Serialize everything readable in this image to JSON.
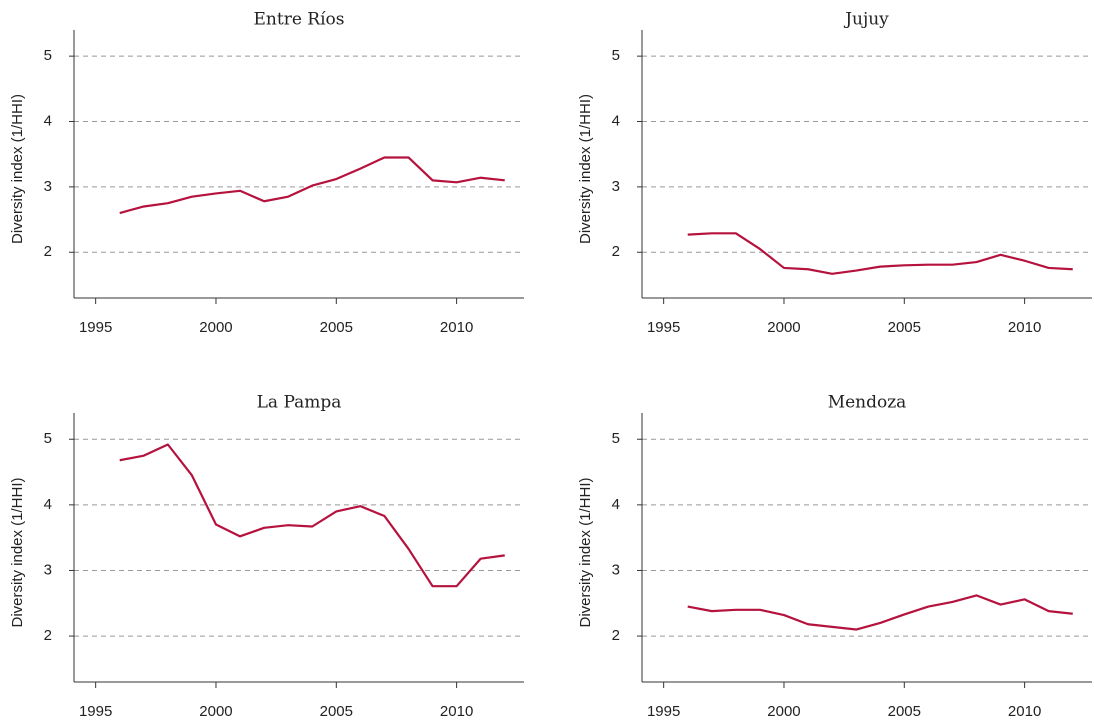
{
  "chart_data": [
    {
      "type": "line",
      "title": "Entre Ríos",
      "ylabel": "Diversity index (1/HHI)",
      "color": "#b5123e",
      "x": [
        1996,
        1997,
        1998,
        1999,
        2000,
        2001,
        2002,
        2003,
        2004,
        2005,
        2006,
        2007,
        2008,
        2009,
        2010,
        2011,
        2012
      ],
      "values": [
        2.6,
        2.7,
        2.75,
        2.85,
        2.9,
        2.94,
        2.78,
        2.85,
        3.02,
        3.12,
        3.28,
        3.45,
        3.45,
        3.1,
        3.07,
        3.14,
        3.1
      ],
      "xlim": [
        1994.1,
        2012.8
      ],
      "xticks": [
        1995,
        2000,
        2005,
        2010
      ],
      "ylim": [
        1.3,
        5.4
      ],
      "yticks": [
        2,
        3,
        4,
        5
      ],
      "grid": true
    },
    {
      "type": "line",
      "title": "Jujuy",
      "ylabel": "Diversity index (1/HHI)",
      "color": "#b5123e",
      "x": [
        1996,
        1997,
        1998,
        1999,
        2000,
        2001,
        2002,
        2003,
        2004,
        2005,
        2006,
        2007,
        2008,
        2009,
        2010,
        2011,
        2012
      ],
      "values": [
        2.27,
        2.29,
        2.29,
        2.05,
        1.76,
        1.74,
        1.67,
        1.72,
        1.78,
        1.8,
        1.81,
        1.81,
        1.85,
        1.96,
        1.87,
        1.76,
        1.74
      ],
      "xlim": [
        1994.1,
        2012.8
      ],
      "xticks": [
        1995,
        2000,
        2005,
        2010
      ],
      "ylim": [
        1.3,
        5.4
      ],
      "yticks": [
        2,
        3,
        4,
        5
      ],
      "grid": true
    },
    {
      "type": "line",
      "title": "La Pampa",
      "ylabel": "Diversity index (1/HHI)",
      "color": "#b5123e",
      "x": [
        1996,
        1997,
        1998,
        1999,
        2000,
        2001,
        2002,
        2003,
        2004,
        2005,
        2006,
        2007,
        2008,
        2009,
        2010,
        2011,
        2012
      ],
      "values": [
        4.68,
        4.75,
        4.92,
        4.45,
        3.7,
        3.52,
        3.65,
        3.69,
        3.67,
        3.9,
        3.98,
        3.83,
        3.33,
        2.76,
        2.76,
        3.18,
        3.23
      ],
      "xlim": [
        1994.1,
        2012.8
      ],
      "xticks": [
        1995,
        2000,
        2005,
        2010
      ],
      "ylim": [
        1.3,
        5.4
      ],
      "yticks": [
        2,
        3,
        4,
        5
      ],
      "grid": true
    },
    {
      "type": "line",
      "title": "Mendoza",
      "ylabel": "Diversity index (1/HHI)",
      "color": "#b5123e",
      "x": [
        1996,
        1997,
        1998,
        1999,
        2000,
        2001,
        2002,
        2003,
        2004,
        2005,
        2006,
        2007,
        2008,
        2009,
        2010,
        2011,
        2012
      ],
      "values": [
        2.45,
        2.38,
        2.4,
        2.4,
        2.32,
        2.18,
        2.14,
        2.1,
        2.2,
        2.33,
        2.45,
        2.52,
        2.62,
        2.48,
        2.56,
        2.38,
        2.34
      ],
      "xlim": [
        1994.1,
        2012.8
      ],
      "xticks": [
        1995,
        2000,
        2005,
        2010
      ],
      "ylim": [
        1.3,
        5.4
      ],
      "yticks": [
        2,
        3,
        4,
        5
      ],
      "grid": true
    }
  ]
}
